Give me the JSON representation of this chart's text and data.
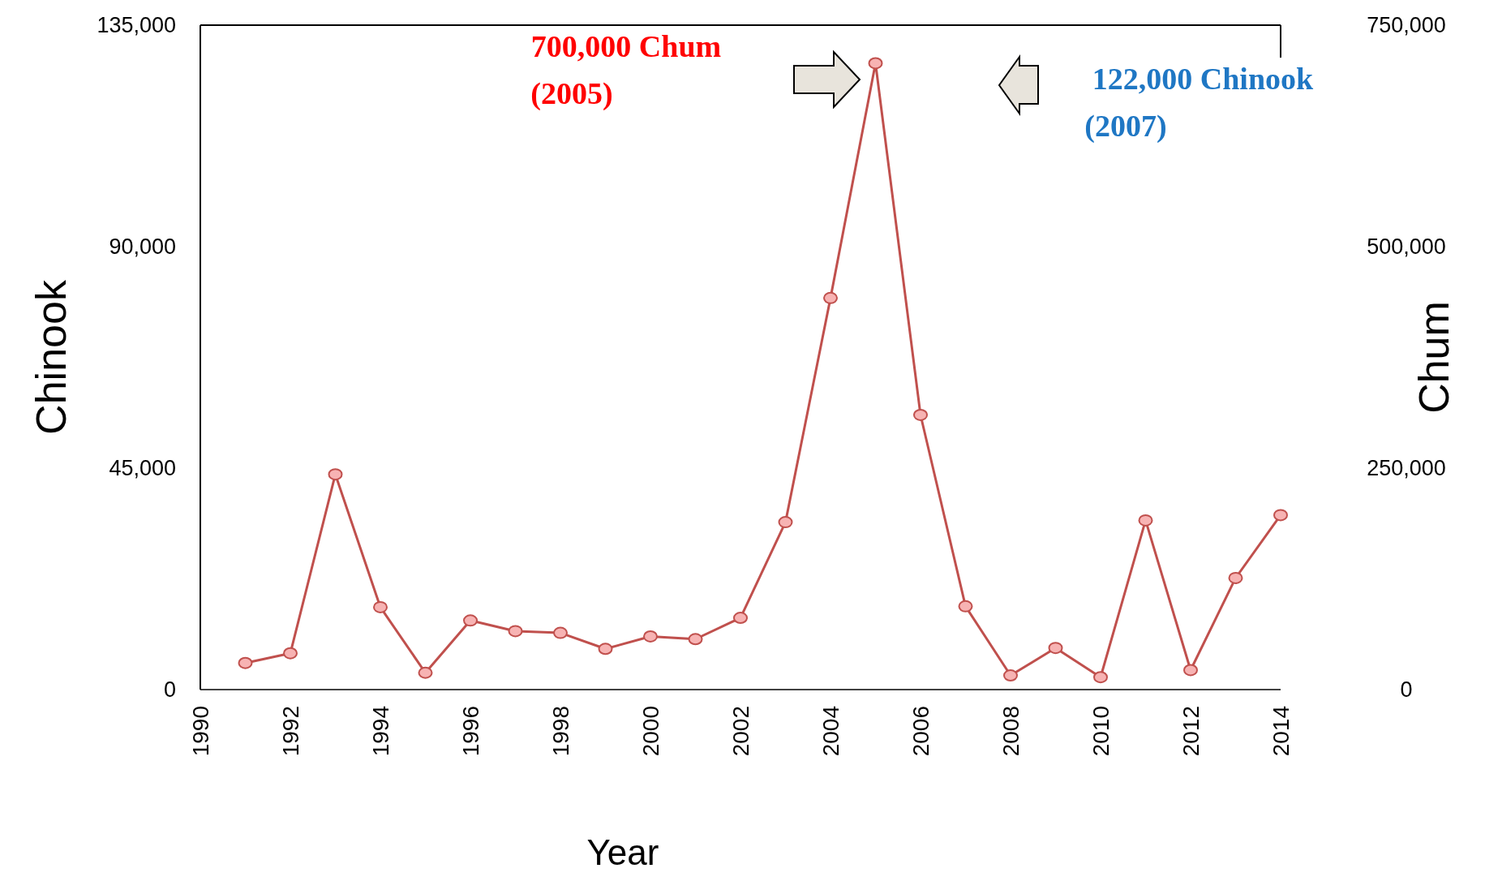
{
  "chart_data": {
    "type": "line",
    "xlabel": "Year",
    "ylabel": "Chinook",
    "y2label": "Chum",
    "x": [
      1991,
      1992,
      1993,
      1994,
      1995,
      1996,
      1997,
      1998,
      1999,
      2000,
      2001,
      2002,
      2003,
      2004,
      2005,
      2006,
      2007,
      2008,
      2009,
      2010,
      2011,
      2012,
      2013,
      2014
    ],
    "series": [
      {
        "color": "#c0504d",
        "axis": "y2",
        "values": [
          30000,
          41000,
          243000,
          93000,
          19000,
          78000,
          66000,
          64000,
          46000,
          60000,
          57000,
          81000,
          189000,
          442000,
          707000,
          310000,
          94000,
          16000,
          47000,
          14000,
          191000,
          22000,
          126000,
          197000
        ]
      }
    ],
    "xlim": [
      1990,
      2014
    ],
    "xticks": [
      1990,
      1992,
      1994,
      1996,
      1998,
      2000,
      2002,
      2004,
      2006,
      2008,
      2010,
      2012,
      2014
    ],
    "ylim": [
      0,
      135000
    ],
    "yticks": [
      {
        "value": 0,
        "label": "0"
      },
      {
        "value": 45000,
        "label": "45,000"
      },
      {
        "value": 90000,
        "label": "90,000"
      },
      {
        "value": 135000,
        "label": "135,000"
      }
    ],
    "y2lim": [
      0,
      750000
    ],
    "y2ticks": [
      {
        "value": 0,
        "label": "0"
      },
      {
        "value": 250000,
        "label": "250,000"
      },
      {
        "value": 500000,
        "label": "500,000"
      },
      {
        "value": 750000,
        "label": "750,000"
      }
    ],
    "annotations": [
      "700,000 Chum\n(2005)",
      "122,000 Chinook\n(2007)"
    ],
    "marker": "circle",
    "line_style": "solid",
    "grid": false
  }
}
